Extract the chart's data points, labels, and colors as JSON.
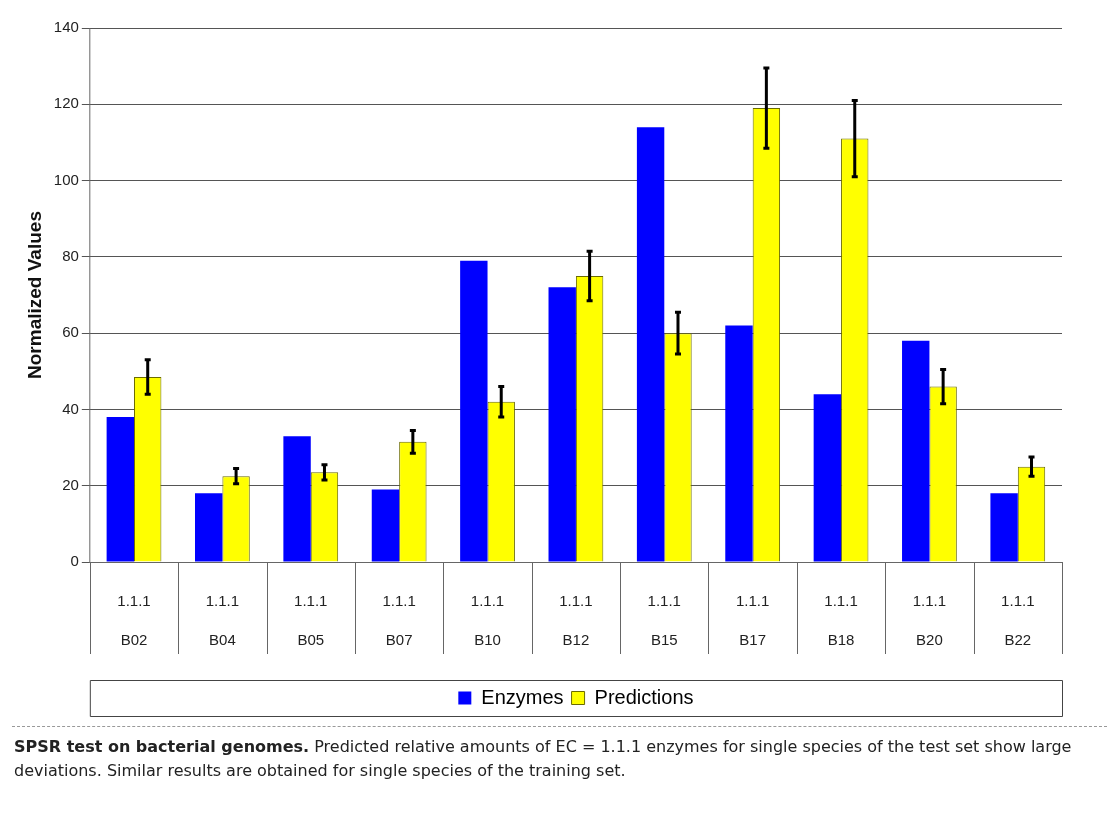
{
  "chart_data": {
    "type": "bar",
    "ylabel": "Normalized Values",
    "categories": [
      "1.1.1\nB02",
      "1.1.1\nB04",
      "1.1.1\nB05",
      "1.1.1\nB07",
      "1.1.1\nB10",
      "1.1.1\nB12",
      "1.1.1\nB15",
      "1.1.1\nB17",
      "1.1.1\nB18",
      "1.1.1\nB20",
      "1.1.1\nB22"
    ],
    "series": [
      {
        "name": "Enzymes",
        "color": "#0000ff",
        "values": [
          38,
          18,
          33,
          19,
          79,
          72,
          114,
          62,
          44,
          58,
          18
        ]
      },
      {
        "name": "Predictions",
        "color": "#ffff00",
        "values": [
          48.5,
          22.5,
          23.5,
          31.5,
          42,
          75,
          60,
          119,
          111,
          46,
          25
        ],
        "errors": [
          4.5,
          2,
          2,
          3,
          4,
          6.5,
          5.5,
          10.5,
          10,
          4.5,
          2.5
        ]
      }
    ],
    "ylim": [
      0,
      140
    ],
    "yticks": [
      0,
      20,
      40,
      60,
      80,
      100,
      120,
      140
    ],
    "grid": "y",
    "legend": "bottom",
    "annotations": [
      "SPSR test on bacterial genomes.",
      "Predicted relative amounts of EC = 1.1.1 enzymes for single species of the test set show large deviations. Similar results are obtained for single species of the training set."
    ]
  }
}
